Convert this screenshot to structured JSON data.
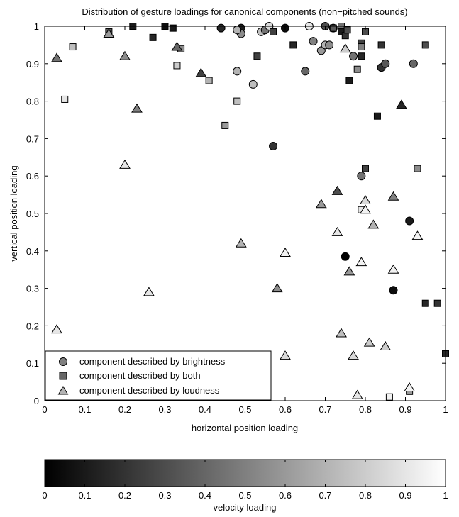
{
  "chart_data": {
    "type": "scatter",
    "title": "Distribution of gesture loadings for canonical components (non−pitched sounds)",
    "xlabel": "horizontal position loading",
    "ylabel": "vertical position loading",
    "xlim": [
      0,
      1
    ],
    "ylim": [
      0,
      1
    ],
    "xticks": [
      "0",
      "0.1",
      "0.2",
      "0.3",
      "0.4",
      "0.5",
      "0.6",
      "0.7",
      "0.8",
      "0.9",
      "1"
    ],
    "yticks": [
      "0",
      "0.1",
      "0.2",
      "0.3",
      "0.4",
      "0.5",
      "0.6",
      "0.7",
      "0.8",
      "0.9",
      "1"
    ],
    "grid": false,
    "legend_position": "bottom-left",
    "legend": [
      {
        "marker": "circle",
        "label": "component described by brightness"
      },
      {
        "marker": "square",
        "label": "component described by both"
      },
      {
        "marker": "triangle",
        "label": "component described by loudness"
      }
    ],
    "colorbar": {
      "label": "velocity loading",
      "range": [
        0,
        1
      ],
      "ticks": [
        "0",
        "0.1",
        "0.2",
        "0.3",
        "0.4",
        "0.5",
        "0.6",
        "0.7",
        "0.8",
        "0.9",
        "1"
      ],
      "colormap": "gray"
    },
    "series": [
      {
        "marker": "circle",
        "points": [
          {
            "x": 0.44,
            "y": 0.995,
            "v": 0.15
          },
          {
            "x": 0.49,
            "y": 0.995,
            "v": 0.1
          },
          {
            "x": 0.49,
            "y": 0.98,
            "v": 0.55
          },
          {
            "x": 0.48,
            "y": 0.99,
            "v": 0.7
          },
          {
            "x": 0.54,
            "y": 0.985,
            "v": 0.75
          },
          {
            "x": 0.55,
            "y": 0.99,
            "v": 0.45
          },
          {
            "x": 0.56,
            "y": 1.0,
            "v": 0.85
          },
          {
            "x": 0.6,
            "y": 0.995,
            "v": 0.05
          },
          {
            "x": 0.66,
            "y": 1.0,
            "v": 0.9
          },
          {
            "x": 0.7,
            "y": 1.0,
            "v": 0.3
          },
          {
            "x": 0.72,
            "y": 0.995,
            "v": 0.15
          },
          {
            "x": 0.67,
            "y": 0.96,
            "v": 0.5
          },
          {
            "x": 0.69,
            "y": 0.935,
            "v": 0.6
          },
          {
            "x": 0.7,
            "y": 0.95,
            "v": 0.7
          },
          {
            "x": 0.71,
            "y": 0.95,
            "v": 0.55
          },
          {
            "x": 0.77,
            "y": 0.92,
            "v": 0.45
          },
          {
            "x": 0.84,
            "y": 0.89,
            "v": 0.2
          },
          {
            "x": 0.85,
            "y": 0.9,
            "v": 0.35
          },
          {
            "x": 0.92,
            "y": 0.9,
            "v": 0.4
          },
          {
            "x": 0.65,
            "y": 0.88,
            "v": 0.4
          },
          {
            "x": 0.48,
            "y": 0.88,
            "v": 0.7
          },
          {
            "x": 0.52,
            "y": 0.845,
            "v": 0.75
          },
          {
            "x": 0.57,
            "y": 0.68,
            "v": 0.2
          },
          {
            "x": 0.79,
            "y": 0.6,
            "v": 0.45
          },
          {
            "x": 0.91,
            "y": 0.48,
            "v": 0.1
          },
          {
            "x": 0.75,
            "y": 0.385,
            "v": 0.0
          },
          {
            "x": 0.87,
            "y": 0.295,
            "v": 0.05
          }
        ]
      },
      {
        "marker": "square",
        "points": [
          {
            "x": 0.16,
            "y": 0.985,
            "v": 0.35
          },
          {
            "x": 0.22,
            "y": 1.0,
            "v": 0.1
          },
          {
            "x": 0.3,
            "y": 1.0,
            "v": 0.05
          },
          {
            "x": 0.32,
            "y": 0.995,
            "v": 0.1
          },
          {
            "x": 0.27,
            "y": 0.97,
            "v": 0.15
          },
          {
            "x": 0.07,
            "y": 0.945,
            "v": 0.75
          },
          {
            "x": 0.33,
            "y": 0.895,
            "v": 0.8
          },
          {
            "x": 0.34,
            "y": 0.94,
            "v": 0.55
          },
          {
            "x": 0.41,
            "y": 0.855,
            "v": 0.7
          },
          {
            "x": 0.05,
            "y": 0.805,
            "v": 0.9
          },
          {
            "x": 0.48,
            "y": 0.8,
            "v": 0.75
          },
          {
            "x": 0.45,
            "y": 0.735,
            "v": 0.6
          },
          {
            "x": 0.53,
            "y": 0.92,
            "v": 0.25
          },
          {
            "x": 0.57,
            "y": 0.985,
            "v": 0.25
          },
          {
            "x": 0.62,
            "y": 0.95,
            "v": 0.15
          },
          {
            "x": 0.72,
            "y": 0.995,
            "v": 0.35
          },
          {
            "x": 0.74,
            "y": 1.0,
            "v": 0.45
          },
          {
            "x": 0.74,
            "y": 0.985,
            "v": 0.1
          },
          {
            "x": 0.75,
            "y": 0.975,
            "v": 0.2
          },
          {
            "x": 0.755,
            "y": 0.99,
            "v": 0.3
          },
          {
            "x": 0.8,
            "y": 0.985,
            "v": 0.3
          },
          {
            "x": 0.79,
            "y": 0.955,
            "v": 0.25
          },
          {
            "x": 0.79,
            "y": 0.945,
            "v": 0.5
          },
          {
            "x": 0.79,
            "y": 0.92,
            "v": 0.15
          },
          {
            "x": 0.84,
            "y": 0.95,
            "v": 0.2
          },
          {
            "x": 0.95,
            "y": 0.95,
            "v": 0.3
          },
          {
            "x": 0.78,
            "y": 0.885,
            "v": 0.55
          },
          {
            "x": 0.76,
            "y": 0.855,
            "v": 0.1
          },
          {
            "x": 0.83,
            "y": 0.76,
            "v": 0.1
          },
          {
            "x": 0.8,
            "y": 0.62,
            "v": 0.25
          },
          {
            "x": 0.93,
            "y": 0.62,
            "v": 0.55
          },
          {
            "x": 0.79,
            "y": 0.51,
            "v": 0.9
          },
          {
            "x": 0.95,
            "y": 0.26,
            "v": 0.15
          },
          {
            "x": 0.98,
            "y": 0.26,
            "v": 0.2
          },
          {
            "x": 1.0,
            "y": 0.125,
            "v": 0.15
          },
          {
            "x": 0.91,
            "y": 0.025,
            "v": 0.6
          },
          {
            "x": 0.86,
            "y": 0.01,
            "v": 0.95
          }
        ]
      },
      {
        "marker": "triangle",
        "points": [
          {
            "x": 0.03,
            "y": 0.915,
            "v": 0.45
          },
          {
            "x": 0.16,
            "y": 0.98,
            "v": 0.6
          },
          {
            "x": 0.2,
            "y": 0.92,
            "v": 0.55
          },
          {
            "x": 0.33,
            "y": 0.945,
            "v": 0.4
          },
          {
            "x": 0.39,
            "y": 0.875,
            "v": 0.25
          },
          {
            "x": 0.23,
            "y": 0.78,
            "v": 0.5
          },
          {
            "x": 0.2,
            "y": 0.63,
            "v": 0.9
          },
          {
            "x": 0.26,
            "y": 0.29,
            "v": 0.9
          },
          {
            "x": 0.03,
            "y": 0.19,
            "v": 0.9
          },
          {
            "x": 0.49,
            "y": 0.42,
            "v": 0.7
          },
          {
            "x": 0.6,
            "y": 0.395,
            "v": 0.95
          },
          {
            "x": 0.58,
            "y": 0.3,
            "v": 0.55
          },
          {
            "x": 0.6,
            "y": 0.12,
            "v": 0.85
          },
          {
            "x": 0.75,
            "y": 0.94,
            "v": 0.8
          },
          {
            "x": 0.73,
            "y": 0.56,
            "v": 0.3
          },
          {
            "x": 0.69,
            "y": 0.525,
            "v": 0.6
          },
          {
            "x": 0.73,
            "y": 0.45,
            "v": 0.9
          },
          {
            "x": 0.8,
            "y": 0.535,
            "v": 0.85
          },
          {
            "x": 0.8,
            "y": 0.51,
            "v": 0.95
          },
          {
            "x": 0.82,
            "y": 0.47,
            "v": 0.7
          },
          {
            "x": 0.87,
            "y": 0.545,
            "v": 0.5
          },
          {
            "x": 0.76,
            "y": 0.345,
            "v": 0.6
          },
          {
            "x": 0.79,
            "y": 0.37,
            "v": 0.95
          },
          {
            "x": 0.87,
            "y": 0.35,
            "v": 0.95
          },
          {
            "x": 0.93,
            "y": 0.44,
            "v": 0.95
          },
          {
            "x": 0.89,
            "y": 0.79,
            "v": 0.15
          },
          {
            "x": 0.74,
            "y": 0.18,
            "v": 0.75
          },
          {
            "x": 0.81,
            "y": 0.155,
            "v": 0.8
          },
          {
            "x": 0.85,
            "y": 0.145,
            "v": 0.8
          },
          {
            "x": 0.77,
            "y": 0.12,
            "v": 0.85
          },
          {
            "x": 0.78,
            "y": 0.015,
            "v": 0.9
          },
          {
            "x": 0.91,
            "y": 0.035,
            "v": 0.95
          }
        ]
      }
    ]
  }
}
